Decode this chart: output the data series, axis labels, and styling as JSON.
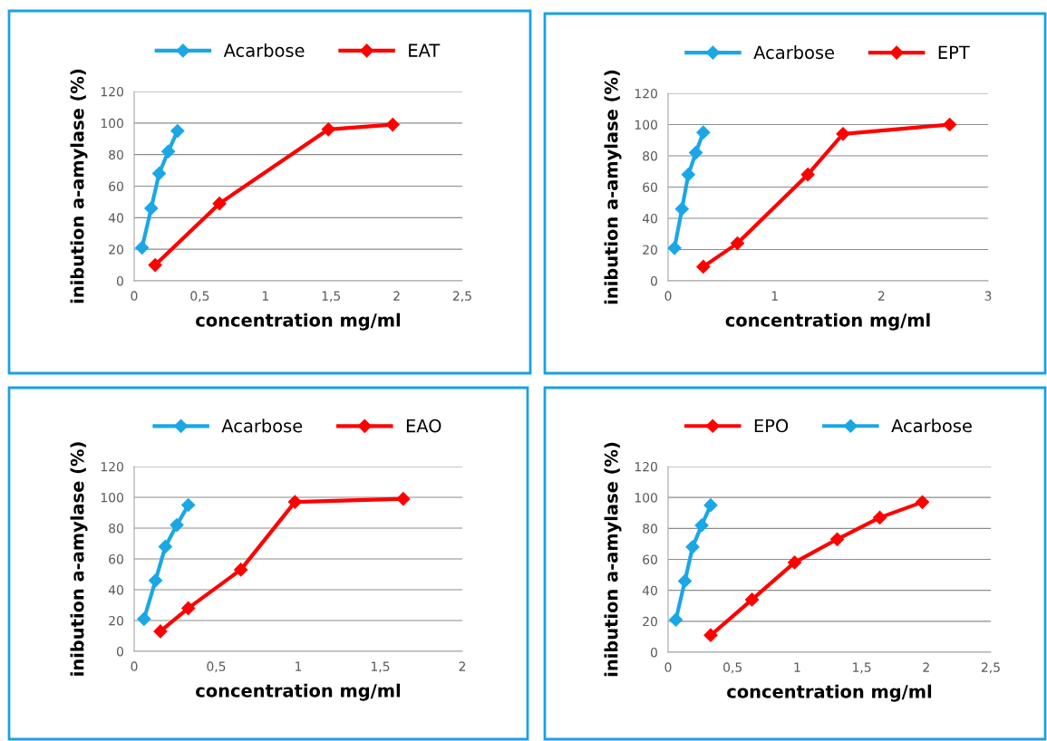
{
  "chart_data": [
    {
      "type": "line",
      "xlabel": "concentration mg/ml",
      "ylabel": "inibution a-amylase (%)",
      "xlim": [
        0,
        2.5
      ],
      "xticks": [
        0,
        {
          "value": 0.5,
          "label": "0,5"
        },
        1,
        {
          "value": 1.5,
          "label": "1,5"
        },
        2,
        {
          "value": 2.5,
          "label": "2,5"
        }
      ],
      "ylim": [
        0,
        120
      ],
      "yticks": [
        0,
        20,
        40,
        60,
        80,
        100,
        120
      ],
      "grid": "y",
      "legend": "top",
      "marker": "diamond",
      "line_style": "solid",
      "series": [
        {
          "name": "Acarbose",
          "color": "#1ba7e6",
          "x": [
            0.06,
            0.13,
            0.19,
            0.26,
            0.33
          ],
          "values": [
            21,
            46,
            68,
            82,
            95
          ]
        },
        {
          "name": "EAT",
          "color": "#ff0000",
          "x": [
            0.16,
            0.65,
            1.48,
            1.97
          ],
          "values": [
            10,
            49,
            96,
            99
          ]
        }
      ]
    },
    {
      "type": "line",
      "xlabel": "concentration mg/ml",
      "ylabel": "inibution a-amylase (%)",
      "xlim": [
        0,
        3
      ],
      "xticks": [
        0,
        1,
        2,
        3
      ],
      "ylim": [
        0,
        120
      ],
      "yticks": [
        0,
        20,
        40,
        60,
        80,
        100,
        120
      ],
      "grid": "y",
      "legend": "top",
      "marker": "diamond",
      "line_style": "solid",
      "series": [
        {
          "name": "Acarbose",
          "color": "#1ba7e6",
          "x": [
            0.06,
            0.13,
            0.19,
            0.26,
            0.33
          ],
          "values": [
            21,
            46,
            68,
            82,
            95
          ]
        },
        {
          "name": "EPT",
          "color": "#ff0000",
          "x": [
            0.33,
            0.65,
            1.31,
            1.64,
            2.64
          ],
          "values": [
            9,
            24,
            68,
            94,
            100
          ]
        }
      ]
    },
    {
      "type": "line",
      "xlabel": "concentration mg/ml",
      "ylabel": "inibution a-amylase (%)",
      "xlim": [
        0,
        2
      ],
      "xticks": [
        0,
        {
          "value": 0.5,
          "label": "0,5"
        },
        1,
        {
          "value": 1.5,
          "label": "1,5"
        },
        2
      ],
      "ylim": [
        0,
        120
      ],
      "yticks": [
        0,
        20,
        40,
        60,
        80,
        100,
        120
      ],
      "grid": "y",
      "legend": "top",
      "marker": "diamond",
      "line_style": "solid",
      "series": [
        {
          "name": "Acarbose",
          "color": "#1ba7e6",
          "x": [
            0.06,
            0.13,
            0.19,
            0.26,
            0.33
          ],
          "values": [
            21,
            46,
            68,
            82,
            95
          ]
        },
        {
          "name": "EAO",
          "color": "#ff0000",
          "x": [
            0.16,
            0.33,
            0.65,
            0.98,
            1.64
          ],
          "values": [
            13,
            28,
            53,
            97,
            99
          ]
        }
      ]
    },
    {
      "type": "line",
      "xlabel": "concentration mg/ml",
      "ylabel": "inibution a-amylase (%)",
      "xlim": [
        0,
        2.5
      ],
      "xticks": [
        0,
        {
          "value": 0.5,
          "label": "0,5"
        },
        1,
        {
          "value": 1.5,
          "label": "1,5"
        },
        2,
        {
          "value": 2.5,
          "label": "2,5"
        }
      ],
      "ylim": [
        0,
        120
      ],
      "yticks": [
        0,
        20,
        40,
        60,
        80,
        100,
        120
      ],
      "grid": "y",
      "legend": "top",
      "marker": "diamond",
      "line_style": "solid",
      "series": [
        {
          "name": "EPO",
          "color": "#ff0000",
          "x": [
            0.33,
            0.65,
            0.98,
            1.31,
            1.64,
            1.97
          ],
          "values": [
            11,
            34,
            58,
            73,
            87,
            97
          ]
        },
        {
          "name": "Acarbose",
          "color": "#1ba7e6",
          "x": [
            0.06,
            0.13,
            0.19,
            0.26,
            0.33
          ],
          "values": [
            21,
            46,
            68,
            82,
            95
          ]
        }
      ]
    }
  ]
}
